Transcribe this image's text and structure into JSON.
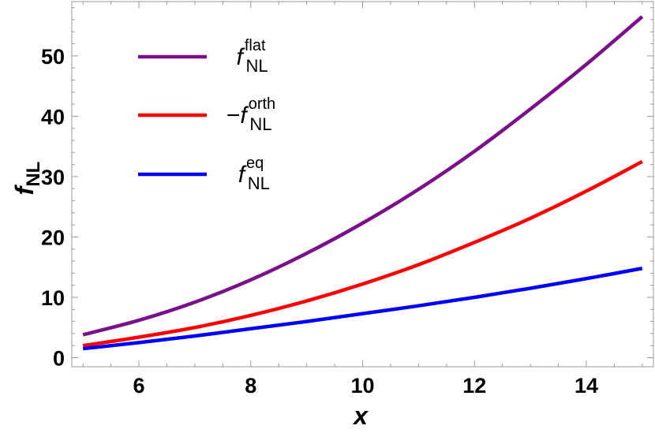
{
  "chart_data": {
    "type": "line",
    "xlabel": "x",
    "ylabel": {
      "main": "f",
      "sub": "NL"
    },
    "xlim": [
      4.8,
      15.2
    ],
    "ylim": [
      -1.5,
      59
    ],
    "xticks": [
      6,
      8,
      10,
      12,
      14
    ],
    "yticks": [
      0,
      10,
      20,
      30,
      40,
      50
    ],
    "grid": false,
    "legend_position": "top-left",
    "series": [
      {
        "key": "flat",
        "label": {
          "prefix": "",
          "main": "f",
          "sub": "NL",
          "sup": "flat"
        },
        "color": "#7b0f8a",
        "x": [
          5,
          6,
          7,
          8,
          9,
          10,
          11,
          12,
          13,
          14,
          15
        ],
        "y": [
          3.8,
          6.2,
          9.2,
          12.9,
          17.3,
          22.3,
          27.9,
          34.2,
          41.2,
          48.6,
          56.5
        ]
      },
      {
        "key": "orth",
        "label": {
          "prefix": "−",
          "main": "f",
          "sub": "NL",
          "sup": "orth"
        },
        "color": "#ff0000",
        "x": [
          5,
          6,
          7,
          8,
          9,
          10,
          11,
          12,
          13,
          14,
          15
        ],
        "y": [
          2.0,
          3.4,
          5.0,
          7.0,
          9.4,
          12.2,
          15.4,
          19.1,
          23.1,
          27.6,
          32.5
        ]
      },
      {
        "key": "eq",
        "label": {
          "prefix": "",
          "main": "f",
          "sub": "NL",
          "sup": "eq"
        },
        "color": "#0000ff",
        "x": [
          5,
          6,
          7,
          8,
          9,
          10,
          11,
          12,
          13,
          14,
          15
        ],
        "y": [
          1.5,
          2.5,
          3.6,
          4.8,
          6.0,
          7.3,
          8.6,
          10.0,
          11.5,
          13.1,
          14.8
        ]
      }
    ]
  }
}
